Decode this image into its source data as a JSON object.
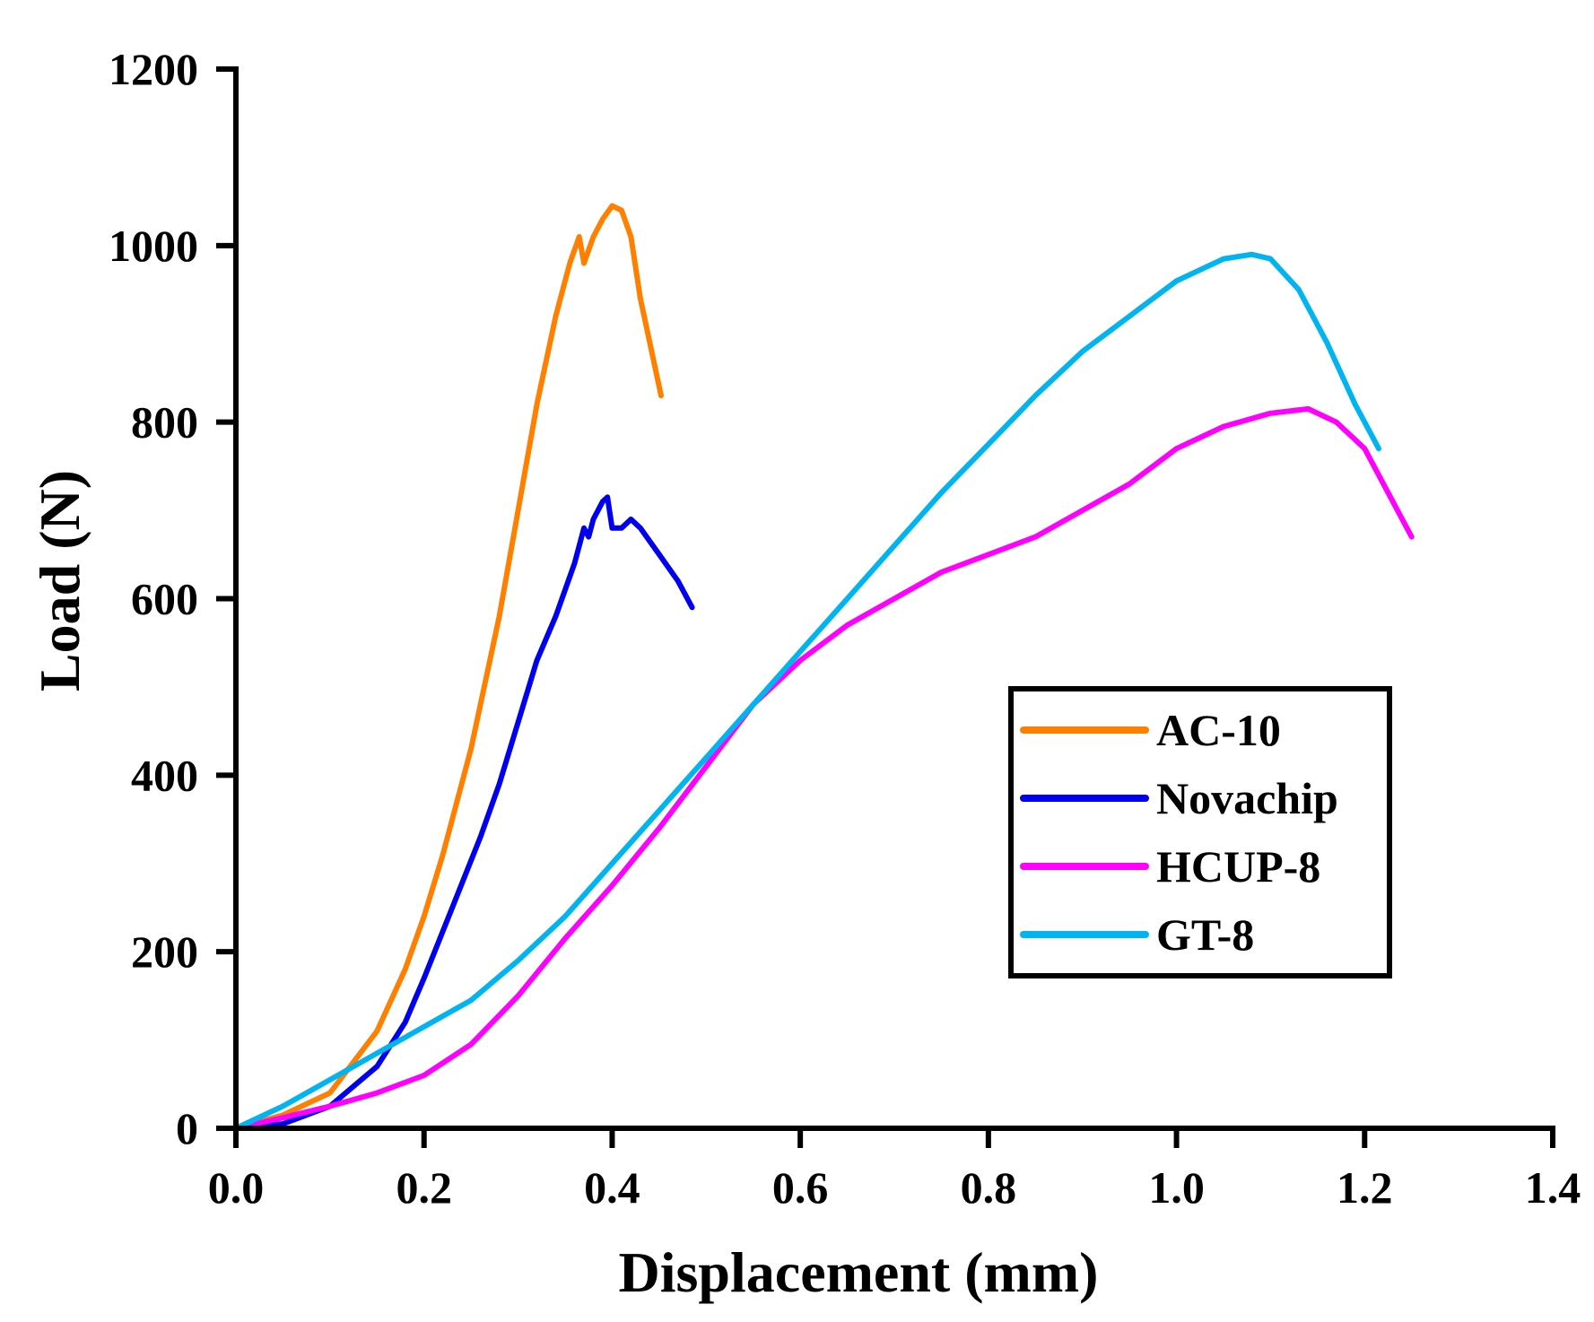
{
  "chart_data": {
    "type": "line",
    "title": "",
    "xlabel": "Displacement (mm)",
    "ylabel": "Load (N)",
    "xlim": [
      0,
      1.4
    ],
    "ylim": [
      0,
      1200
    ],
    "xticks": [
      "0.0",
      "0.2",
      "0.4",
      "0.6",
      "0.8",
      "1.0",
      "1.2",
      "1.4"
    ],
    "yticks": [
      "0",
      "200",
      "400",
      "600",
      "800",
      "1000",
      "1200"
    ],
    "grid": false,
    "legend_position": "center-right",
    "series": [
      {
        "name": "AC-10",
        "color": "#FF7F00",
        "x": [
          0.0,
          0.05,
          0.1,
          0.15,
          0.18,
          0.2,
          0.22,
          0.25,
          0.28,
          0.3,
          0.32,
          0.34,
          0.355,
          0.365,
          0.37,
          0.38,
          0.39,
          0.4,
          0.41,
          0.42,
          0.43,
          0.44,
          0.452
        ],
        "values": [
          0,
          15,
          40,
          110,
          180,
          240,
          310,
          430,
          580,
          700,
          820,
          920,
          980,
          1010,
          980,
          1010,
          1030,
          1045,
          1040,
          1010,
          940,
          890,
          830
        ]
      },
      {
        "name": "Novachip",
        "color": "#0000EE",
        "x": [
          0.0,
          0.05,
          0.1,
          0.15,
          0.18,
          0.2,
          0.23,
          0.26,
          0.28,
          0.3,
          0.32,
          0.34,
          0.36,
          0.37,
          0.375,
          0.38,
          0.39,
          0.395,
          0.4,
          0.41,
          0.42,
          0.43,
          0.45,
          0.47,
          0.485
        ],
        "values": [
          0,
          5,
          25,
          70,
          120,
          170,
          250,
          330,
          390,
          460,
          530,
          580,
          640,
          680,
          670,
          690,
          710,
          715,
          680,
          680,
          690,
          680,
          650,
          620,
          590
        ]
      },
      {
        "name": "HCUP-8",
        "color": "#FF00FF",
        "x": [
          0.0,
          0.05,
          0.1,
          0.15,
          0.2,
          0.25,
          0.3,
          0.35,
          0.4,
          0.45,
          0.5,
          0.55,
          0.6,
          0.65,
          0.7,
          0.75,
          0.8,
          0.85,
          0.9,
          0.95,
          1.0,
          1.05,
          1.1,
          1.14,
          1.17,
          1.2,
          1.23,
          1.25
        ],
        "values": [
          0,
          12,
          25,
          40,
          60,
          95,
          150,
          215,
          275,
          340,
          410,
          480,
          530,
          570,
          600,
          630,
          650,
          670,
          700,
          730,
          770,
          795,
          810,
          815,
          800,
          770,
          710,
          670
        ]
      },
      {
        "name": "GT-8",
        "color": "#00B4F0",
        "x": [
          0.0,
          0.05,
          0.1,
          0.15,
          0.2,
          0.25,
          0.3,
          0.35,
          0.4,
          0.45,
          0.5,
          0.55,
          0.6,
          0.65,
          0.7,
          0.75,
          0.8,
          0.85,
          0.9,
          0.95,
          1.0,
          1.05,
          1.08,
          1.1,
          1.13,
          1.16,
          1.19,
          1.215
        ],
        "values": [
          0,
          25,
          55,
          85,
          115,
          145,
          190,
          240,
          300,
          360,
          420,
          480,
          540,
          600,
          660,
          720,
          775,
          830,
          880,
          920,
          960,
          985,
          990,
          985,
          950,
          890,
          820,
          770
        ]
      }
    ]
  }
}
